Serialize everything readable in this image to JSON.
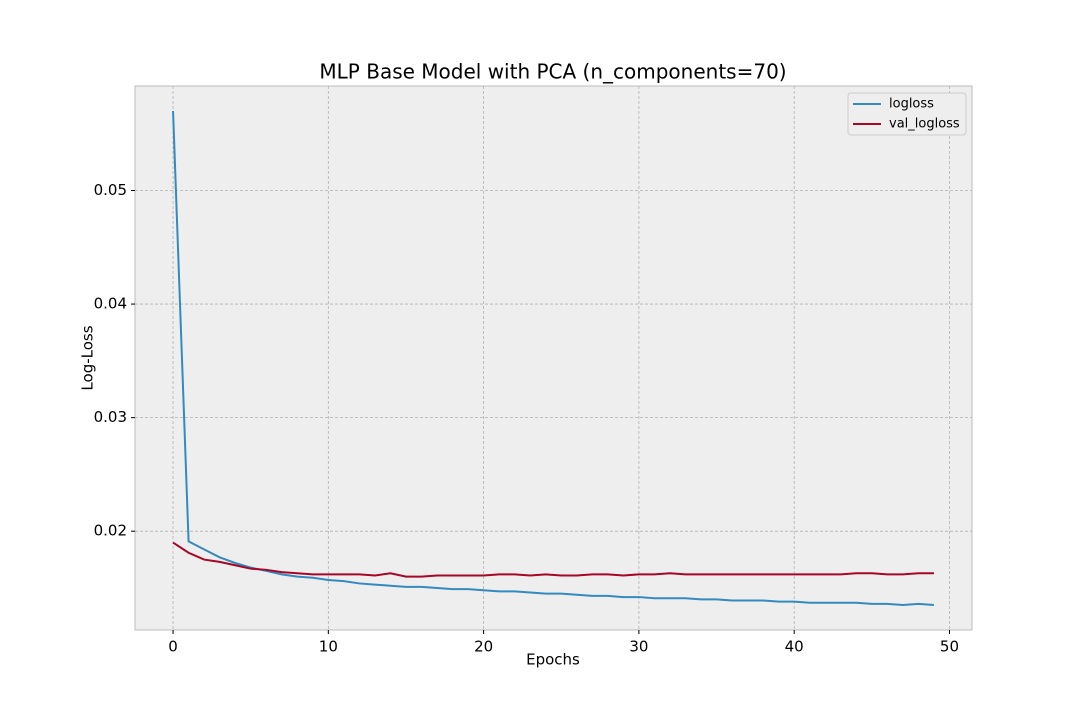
{
  "chart_data": {
    "type": "line",
    "title": "MLP Base Model with PCA (n_components=70)",
    "x_label": "Epochs",
    "y_label": "Log-Loss",
    "x": [
      0,
      1,
      2,
      3,
      4,
      5,
      6,
      7,
      8,
      9,
      10,
      11,
      12,
      13,
      14,
      15,
      16,
      17,
      18,
      19,
      20,
      21,
      22,
      23,
      24,
      25,
      26,
      27,
      28,
      29,
      30,
      31,
      32,
      33,
      34,
      35,
      36,
      37,
      38,
      39,
      40,
      41,
      42,
      43,
      44,
      45,
      46,
      47,
      48,
      49
    ],
    "series": [
      {
        "name": "logloss",
        "color": "#348abd",
        "values": [
          0.057,
          0.0191,
          0.0184,
          0.0177,
          0.0172,
          0.0168,
          0.0165,
          0.0162,
          0.016,
          0.0159,
          0.0157,
          0.0156,
          0.0154,
          0.0153,
          0.0152,
          0.0151,
          0.0151,
          0.015,
          0.0149,
          0.0149,
          0.0148,
          0.0147,
          0.0147,
          0.0146,
          0.0145,
          0.0145,
          0.0144,
          0.0143,
          0.0143,
          0.0142,
          0.0142,
          0.0141,
          0.0141,
          0.0141,
          0.014,
          0.014,
          0.0139,
          0.0139,
          0.0139,
          0.0138,
          0.0138,
          0.0137,
          0.0137,
          0.0137,
          0.0137,
          0.0136,
          0.0136,
          0.0135,
          0.0136,
          0.0135
        ]
      },
      {
        "name": "val_logloss",
        "color": "#a60628",
        "values": [
          0.019,
          0.0181,
          0.0175,
          0.0173,
          0.017,
          0.0167,
          0.0166,
          0.0164,
          0.0163,
          0.0162,
          0.0162,
          0.0162,
          0.0162,
          0.0161,
          0.0163,
          0.016,
          0.016,
          0.0161,
          0.0161,
          0.0161,
          0.0161,
          0.0162,
          0.0162,
          0.0161,
          0.0162,
          0.0161,
          0.0161,
          0.0162,
          0.0162,
          0.0161,
          0.0162,
          0.0162,
          0.0163,
          0.0162,
          0.0162,
          0.0162,
          0.0162,
          0.0162,
          0.0162,
          0.0162,
          0.0162,
          0.0162,
          0.0162,
          0.0162,
          0.0163,
          0.0163,
          0.0162,
          0.0162,
          0.0163,
          0.0163
        ]
      }
    ],
    "xlim": [
      -2.45,
      51.45
    ],
    "xticks": [
      0,
      10,
      20,
      30,
      40,
      50
    ],
    "ylim": [
      0.0113,
      0.0592
    ],
    "yticks": [
      0.02,
      0.03,
      0.04,
      0.05
    ],
    "grid": true,
    "legend": "upper right"
  }
}
